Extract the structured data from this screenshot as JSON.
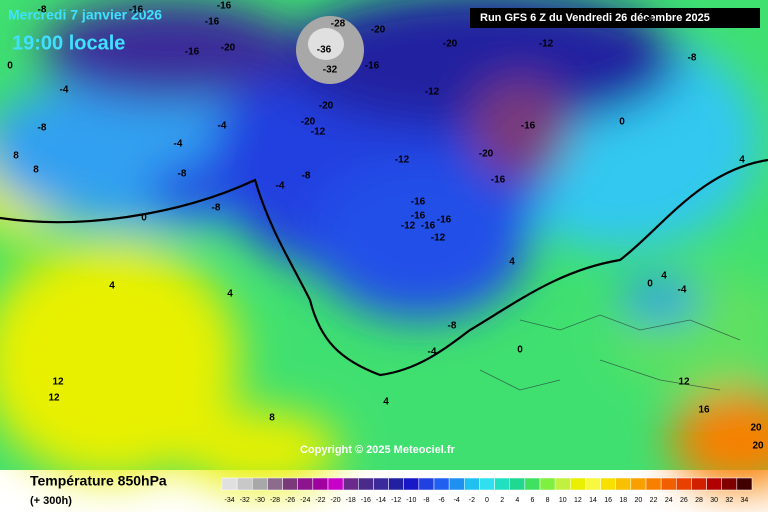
{
  "header": {
    "date": "Mercredi 7 janvier 2026",
    "time": "19:00 locale",
    "run": "Run GFS 6 Z du Vendredi 26 décembre 2025"
  },
  "copyright": "Copyright © 2025 Meteociel.fr",
  "legend": {
    "title": "Température 850hPa",
    "lead": "(+ 300h)",
    "ticks": [
      -34,
      -32,
      -30,
      -28,
      -26,
      -24,
      -22,
      -20,
      -18,
      -16,
      -14,
      -12,
      -10,
      -8,
      -6,
      -4,
      -2,
      0,
      2,
      4,
      6,
      8,
      10,
      12,
      14,
      16,
      18,
      20,
      22,
      24,
      26,
      28,
      30,
      32,
      34
    ],
    "colors": [
      "#e0e0e0",
      "#c8c8c8",
      "#a8a8a8",
      "#8c6c8c",
      "#7a3a7a",
      "#8c148c",
      "#a000a0",
      "#c800c8",
      "#6a2a8a",
      "#4a2a8a",
      "#3a2a9a",
      "#2020a0",
      "#1818c8",
      "#2040e0",
      "#2060f0",
      "#2090f0",
      "#20c0f0",
      "#30e0f0",
      "#20e0c0",
      "#20d890",
      "#40e060",
      "#80f040",
      "#c0f040",
      "#e8f000",
      "#f8f840",
      "#f8e000",
      "#f8c000",
      "#f8a000",
      "#f88000",
      "#f06000",
      "#e84000",
      "#d02000",
      "#b00000",
      "#800000",
      "#400000"
    ]
  },
  "contour_labels": [
    -8,
    -16,
    -16,
    -16,
    -28,
    -36,
    -32,
    -20,
    -16,
    -20,
    -12,
    -20,
    -20,
    -12,
    -12,
    -12,
    -16,
    -20,
    -16,
    -16,
    -16,
    -16,
    -12,
    -16,
    -12,
    -8,
    -4,
    -4,
    -8,
    -8,
    -8,
    -4,
    -4,
    -16,
    -20,
    0,
    0,
    -4,
    -8,
    0,
    4,
    4,
    4,
    8,
    8,
    12,
    12,
    8,
    16,
    20,
    20,
    12,
    4,
    -8,
    -4,
    0,
    4,
    4,
    -4,
    0
  ]
}
